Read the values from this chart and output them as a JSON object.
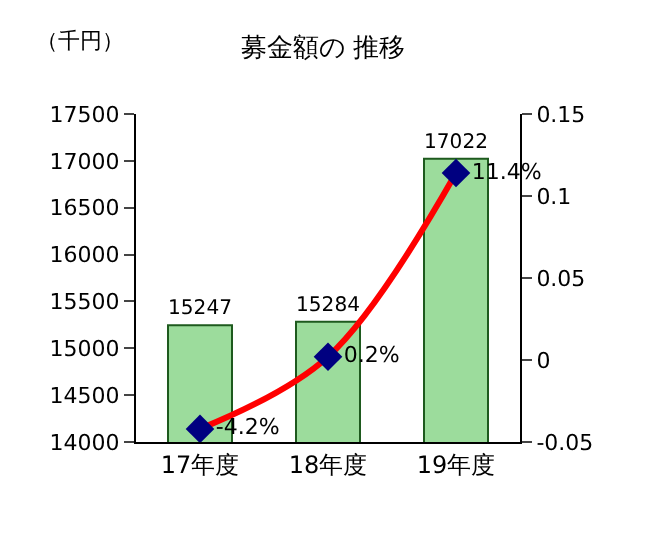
{
  "chart_data": {
    "type": "bar",
    "title": "募金額の 推移",
    "ylabel": "（千円）",
    "categories": [
      "17年度",
      "18年度",
      "19年度"
    ],
    "series": [
      {
        "color": "#9cdc9c",
        "values": [
          15247,
          15284,
          17022
        ],
        "value_labels": [
          "15247",
          "15284",
          "17022"
        ]
      },
      {
        "type": "line",
        "axis": "y2",
        "color": "#ff0000",
        "marker": "diamond",
        "values": [
          -0.042,
          0.002,
          0.114
        ],
        "value_labels": [
          "-4.2%",
          "0.2%",
          "11.4%"
        ]
      }
    ],
    "ylim": [
      14000,
      17500
    ],
    "yticks": [
      14000,
      14500,
      15000,
      15500,
      16000,
      16500,
      17000,
      17500
    ],
    "y2lim": [
      -0.05,
      0.15
    ],
    "y2ticks": [
      {
        "value": -0.05,
        "label": "-0.05"
      },
      0,
      0.05,
      0.1,
      0.15
    ],
    "legend": false
  }
}
